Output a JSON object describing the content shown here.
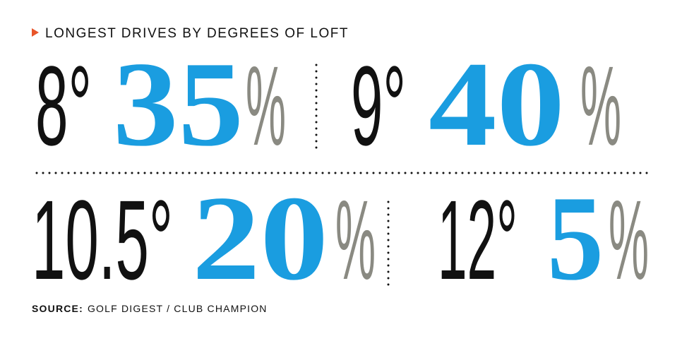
{
  "title": "LONGEST DRIVES BY DEGREES OF LOFT",
  "items": [
    {
      "loft": "8°",
      "value": 35,
      "unit": "%"
    },
    {
      "loft": "9°",
      "value": 40,
      "unit": "%"
    },
    {
      "loft": "10.5°",
      "value": 20,
      "unit": "%"
    },
    {
      "loft": "12°",
      "value": 5,
      "unit": "%"
    }
  ],
  "source": {
    "label": "SOURCE:",
    "text": "GOLF DIGEST / CLUB CHAMPION"
  }
}
